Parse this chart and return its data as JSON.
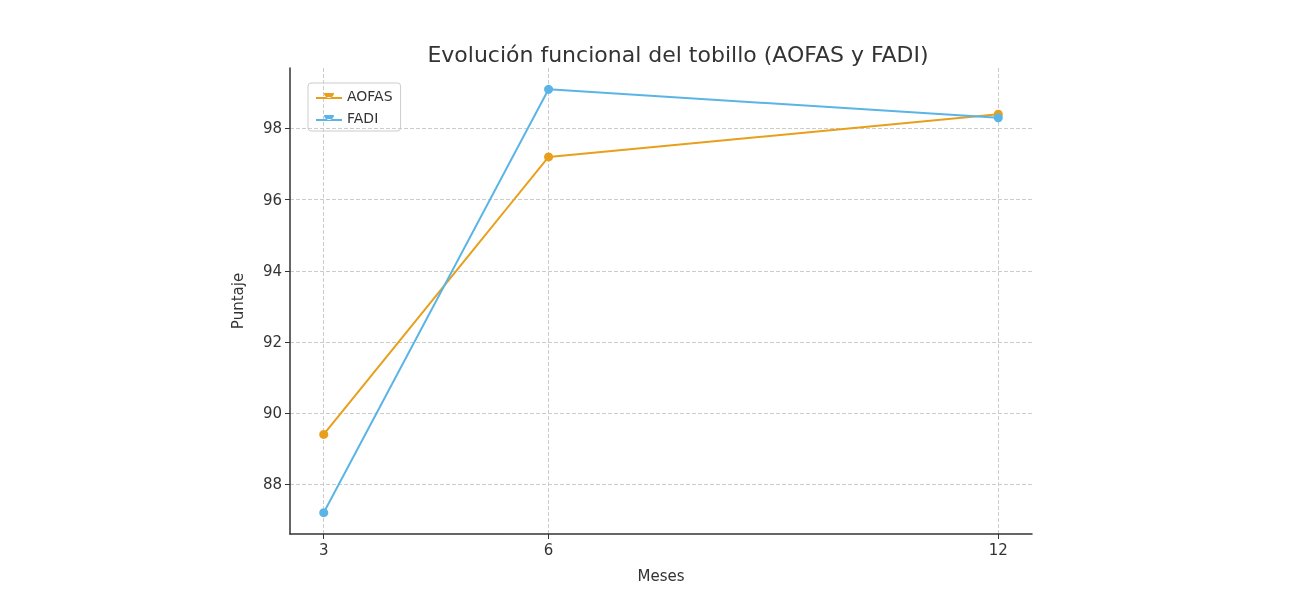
{
  "chart_data": {
    "type": "line",
    "title": "Evolución funcional del tobillo (AOFAS y FADI)",
    "xlabel": "Meses",
    "ylabel": "Puntaje",
    "x": [
      3,
      6,
      12
    ],
    "series": [
      {
        "name": "AOFAS",
        "color": "#e89f1c",
        "values": [
          89.4,
          97.2,
          98.4
        ]
      },
      {
        "name": "FADI",
        "color": "#5ab4e6",
        "values": [
          87.2,
          99.1,
          98.3
        ]
      }
    ],
    "xlim": [
      2.55,
      12.45
    ],
    "xticks": [
      3,
      6,
      12
    ],
    "ylim": [
      86.6,
      99.7
    ],
    "yticks": [
      88,
      90,
      92,
      94,
      96,
      98
    ],
    "grid": true,
    "legend": "top left",
    "marker": "circle",
    "line_style": "solid"
  }
}
